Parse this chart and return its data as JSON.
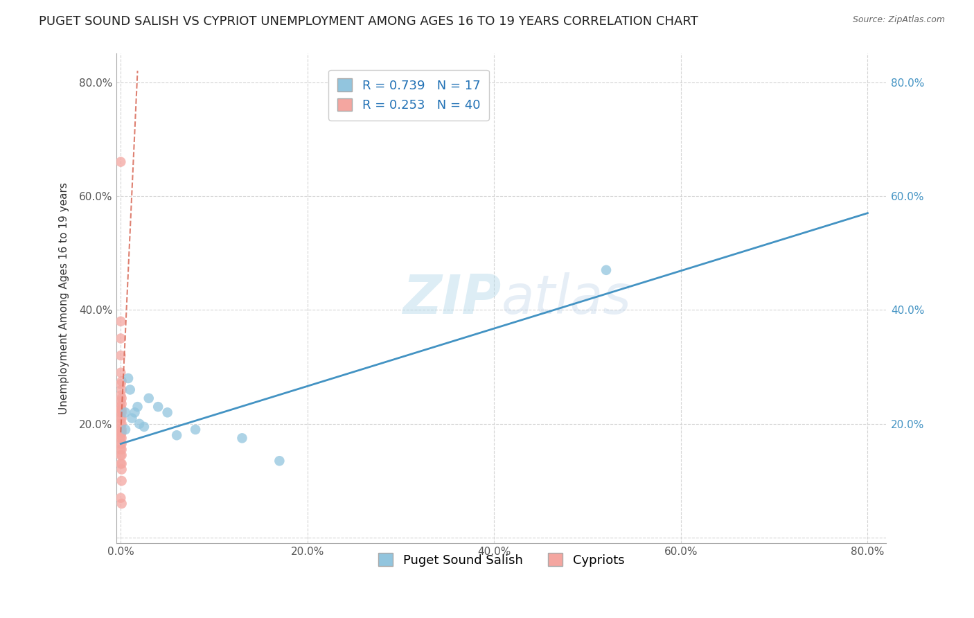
{
  "title": "PUGET SOUND SALISH VS CYPRIOT UNEMPLOYMENT AMONG AGES 16 TO 19 YEARS CORRELATION CHART",
  "source": "Source: ZipAtlas.com",
  "ylabel": "Unemployment Among Ages 16 to 19 years",
  "watermark": "ZIPatlas",
  "xlim": [
    -0.005,
    0.82
  ],
  "ylim": [
    -0.01,
    0.85
  ],
  "xticks": [
    0.0,
    0.2,
    0.4,
    0.6,
    0.8
  ],
  "yticks": [
    0.0,
    0.2,
    0.4,
    0.6,
    0.8
  ],
  "xticklabels": [
    "0.0%",
    "20.0%",
    "40.0%",
    "60.0%",
    "80.0%"
  ],
  "yticklabels_left": [
    "",
    "20.0%",
    "40.0%",
    "60.0%",
    "80.0%"
  ],
  "yticklabels_right": [
    "",
    "20.0%",
    "40.0%",
    "60.0%",
    "80.0%"
  ],
  "blue_R": 0.739,
  "blue_N": 17,
  "pink_R": 0.253,
  "pink_N": 40,
  "blue_color": "#92c5de",
  "pink_color": "#f4a6a0",
  "blue_line_color": "#4393c3",
  "pink_line_color": "#d6604d",
  "legend_label_blue": "Puget Sound Salish",
  "legend_label_pink": "Cypriots",
  "blue_scatter_x": [
    0.005,
    0.005,
    0.008,
    0.01,
    0.012,
    0.015,
    0.018,
    0.02,
    0.025,
    0.03,
    0.04,
    0.05,
    0.06,
    0.08,
    0.13,
    0.17,
    0.52
  ],
  "blue_scatter_y": [
    0.19,
    0.22,
    0.28,
    0.26,
    0.21,
    0.22,
    0.23,
    0.2,
    0.195,
    0.245,
    0.23,
    0.22,
    0.18,
    0.19,
    0.175,
    0.135,
    0.47
  ],
  "pink_scatter_x": [
    0.0,
    0.0,
    0.0,
    0.0,
    0.0,
    0.0,
    0.0,
    0.0,
    0.0,
    0.0,
    0.0,
    0.0,
    0.0,
    0.0,
    0.0,
    0.0,
    0.0,
    0.0,
    0.0,
    0.0,
    0.0,
    0.0,
    0.001,
    0.001,
    0.001,
    0.001,
    0.001,
    0.001,
    0.001,
    0.001,
    0.001,
    0.001,
    0.001,
    0.001,
    0.001,
    0.001,
    0.001,
    0.001,
    0.001,
    0.001
  ],
  "pink_scatter_y": [
    0.66,
    0.38,
    0.35,
    0.32,
    0.29,
    0.27,
    0.25,
    0.24,
    0.23,
    0.225,
    0.22,
    0.21,
    0.2,
    0.19,
    0.185,
    0.18,
    0.175,
    0.165,
    0.155,
    0.145,
    0.13,
    0.07,
    0.275,
    0.26,
    0.245,
    0.235,
    0.225,
    0.22,
    0.21,
    0.2,
    0.19,
    0.185,
    0.175,
    0.165,
    0.155,
    0.145,
    0.13,
    0.12,
    0.1,
    0.06
  ],
  "blue_line_x": [
    0.0,
    0.8
  ],
  "blue_line_y": [
    0.165,
    0.57
  ],
  "pink_line_x": [
    0.0,
    0.018
  ],
  "pink_line_y": [
    0.185,
    0.82
  ],
  "pink_dash_line_x": [
    0.0,
    0.018
  ],
  "pink_dash_line_y": [
    0.185,
    0.82
  ],
  "grid_color": "#d0d0d0",
  "background_color": "#ffffff",
  "title_fontsize": 13,
  "label_fontsize": 11,
  "tick_fontsize": 11,
  "legend_fontsize": 13
}
